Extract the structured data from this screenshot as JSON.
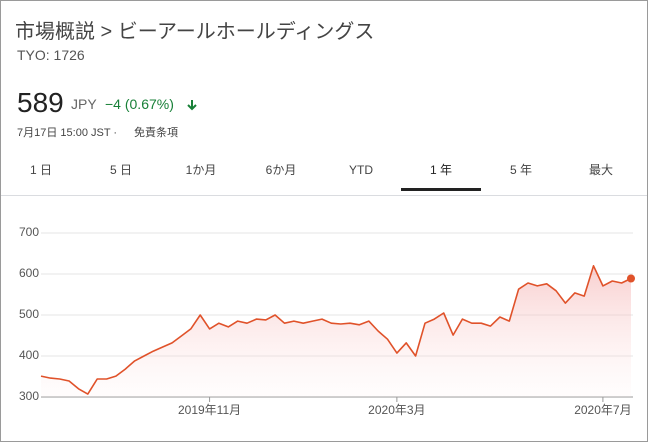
{
  "header": {
    "title": "市場概説 > ビーアールホールディングス",
    "ticker": "TYO: 1726",
    "price": "589",
    "currency": "JPY",
    "change": "−4 (0.67%)",
    "timestamp": "7月17日 15:00 JST ·",
    "disclaimer": "免責条項"
  },
  "tabs": [
    "1 日",
    "5 日",
    "1か月",
    "6か月",
    "YTD",
    "1 年",
    "5 年",
    "最大"
  ],
  "chart_data": {
    "type": "line",
    "color": "#e0522a",
    "values": [
      351,
      346,
      344,
      339,
      320,
      307,
      344,
      344,
      351,
      368,
      388,
      400,
      412,
      422,
      432,
      449,
      466,
      500,
      466,
      480,
      471,
      485,
      480,
      490,
      488,
      500,
      480,
      485,
      480,
      485,
      490,
      480,
      478,
      480,
      476,
      485,
      461,
      441,
      407,
      432,
      400,
      480,
      490,
      505,
      451,
      490,
      480,
      480,
      473,
      495,
      485,
      563,
      578,
      571,
      576,
      559,
      529,
      554,
      546,
      620,
      571,
      583,
      578,
      589
    ],
    "xlim": [
      0,
      63
    ],
    "xticks": [
      {
        "value": 18,
        "label": "2019年11月"
      },
      {
        "value": 38,
        "label": "2020年3月"
      },
      {
        "value": 60,
        "label": "2020年7月"
      }
    ],
    "ylim": [
      300,
      700
    ],
    "yticks": [
      300,
      400,
      500,
      600,
      700
    ],
    "grid": true
  }
}
